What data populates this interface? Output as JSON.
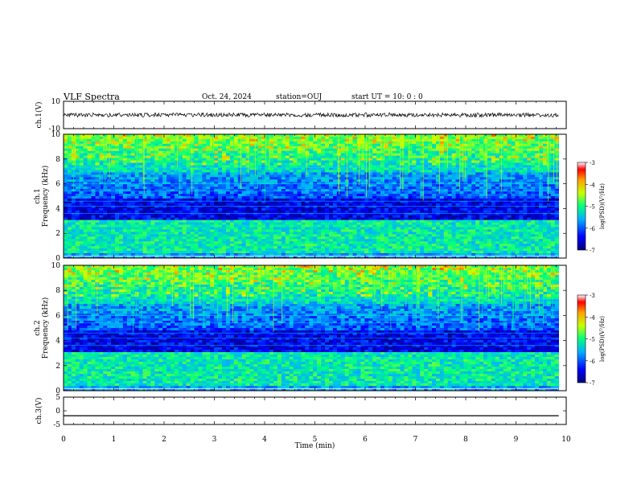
{
  "header": {
    "title": "VLF Spectra",
    "date": "Oct. 24, 2024",
    "station": "station=OUJ",
    "start_ut": "start UT =   10: 0  : 0"
  },
  "chart_data": [
    {
      "type": "line",
      "panel": "ch1-waveform",
      "ylabel": "ch.1(V)",
      "ylim": [
        -10,
        10
      ],
      "yticks": [
        10,
        -10
      ],
      "xlim": [
        0,
        10
      ],
      "description_values": {
        "baseline_v": 0,
        "noise_amplitude_v": 1.5
      }
    },
    {
      "type": "heatmap",
      "panel": "ch1-spectrogram",
      "ylabel_top": "ch.1",
      "ylabel": "Frequency  (kHz)",
      "ylim": [
        0,
        10
      ],
      "yticks": [
        0,
        2,
        4,
        6,
        8,
        10
      ],
      "xlim": [
        0,
        9.85
      ],
      "colorbar": {
        "label": "log(PSD)(V²/Hz)",
        "range": [
          -7,
          -3
        ],
        "ticks": [
          -3,
          -4,
          -5,
          -6,
          -7
        ]
      }
    },
    {
      "type": "heatmap",
      "panel": "ch2-spectrogram",
      "ylabel_top": "ch.2",
      "ylabel": "Frequency  (kHz)",
      "ylim": [
        0,
        10
      ],
      "yticks": [
        0,
        2,
        4,
        6,
        8,
        10
      ],
      "xlim": [
        0,
        9.85
      ],
      "colorbar": {
        "label": "log(PSD)(V²/Hz)",
        "range": [
          -7,
          -3
        ],
        "ticks": [
          -3,
          -4,
          -5,
          -6,
          -7
        ]
      }
    },
    {
      "type": "line",
      "panel": "ch3-waveform",
      "ylabel": "ch.3(V)",
      "ylim": [
        -5,
        5
      ],
      "yticks": [
        5,
        0,
        -5
      ],
      "xlim": [
        0,
        10
      ],
      "description_values": {
        "constant_v": -1.8
      }
    }
  ],
  "xaxis": {
    "label": "Time  (min)",
    "ticks": [
      0,
      1,
      2,
      3,
      4,
      5,
      6,
      7,
      8,
      9,
      10
    ]
  },
  "colors": {
    "axis": "#000000",
    "trace": "#000000"
  }
}
